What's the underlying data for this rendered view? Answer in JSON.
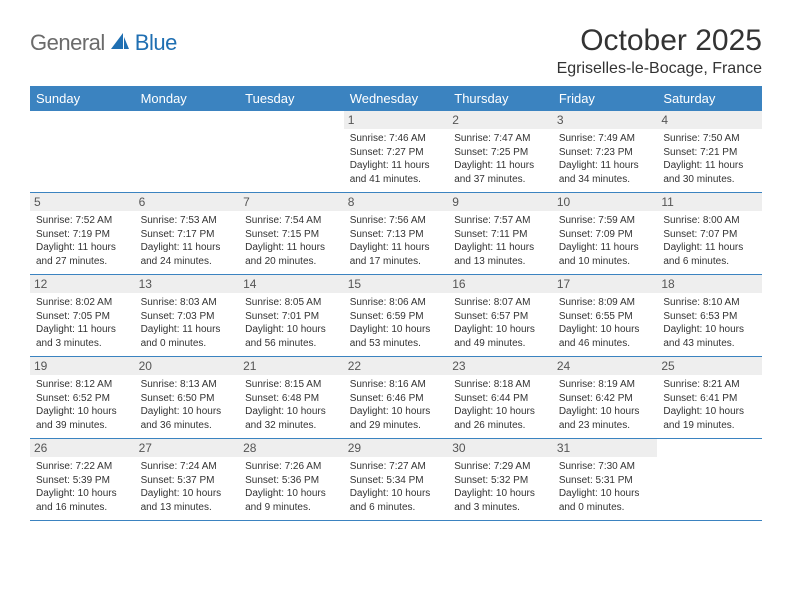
{
  "brand": {
    "part1": "General",
    "part2": "Blue",
    "sail_color": "#1f6fb2",
    "part1_color": "#6b6b6b"
  },
  "header": {
    "month_title": "October 2025",
    "location": "Egriselles-le-Bocage, France"
  },
  "colors": {
    "header_bg": "#3b83c0",
    "header_fg": "#ffffff",
    "rule": "#3b83c0",
    "daynum_bg": "#eeeeee",
    "text": "#333333"
  },
  "weekdays": [
    "Sunday",
    "Monday",
    "Tuesday",
    "Wednesday",
    "Thursday",
    "Friday",
    "Saturday"
  ],
  "weeks": [
    [
      null,
      null,
      null,
      {
        "n": "1",
        "sr": "7:46 AM",
        "ss": "7:27 PM",
        "dl": "11 hours and 41 minutes."
      },
      {
        "n": "2",
        "sr": "7:47 AM",
        "ss": "7:25 PM",
        "dl": "11 hours and 37 minutes."
      },
      {
        "n": "3",
        "sr": "7:49 AM",
        "ss": "7:23 PM",
        "dl": "11 hours and 34 minutes."
      },
      {
        "n": "4",
        "sr": "7:50 AM",
        "ss": "7:21 PM",
        "dl": "11 hours and 30 minutes."
      }
    ],
    [
      {
        "n": "5",
        "sr": "7:52 AM",
        "ss": "7:19 PM",
        "dl": "11 hours and 27 minutes."
      },
      {
        "n": "6",
        "sr": "7:53 AM",
        "ss": "7:17 PM",
        "dl": "11 hours and 24 minutes."
      },
      {
        "n": "7",
        "sr": "7:54 AM",
        "ss": "7:15 PM",
        "dl": "11 hours and 20 minutes."
      },
      {
        "n": "8",
        "sr": "7:56 AM",
        "ss": "7:13 PM",
        "dl": "11 hours and 17 minutes."
      },
      {
        "n": "9",
        "sr": "7:57 AM",
        "ss": "7:11 PM",
        "dl": "11 hours and 13 minutes."
      },
      {
        "n": "10",
        "sr": "7:59 AM",
        "ss": "7:09 PM",
        "dl": "11 hours and 10 minutes."
      },
      {
        "n": "11",
        "sr": "8:00 AM",
        "ss": "7:07 PM",
        "dl": "11 hours and 6 minutes."
      }
    ],
    [
      {
        "n": "12",
        "sr": "8:02 AM",
        "ss": "7:05 PM",
        "dl": "11 hours and 3 minutes."
      },
      {
        "n": "13",
        "sr": "8:03 AM",
        "ss": "7:03 PM",
        "dl": "11 hours and 0 minutes."
      },
      {
        "n": "14",
        "sr": "8:05 AM",
        "ss": "7:01 PM",
        "dl": "10 hours and 56 minutes."
      },
      {
        "n": "15",
        "sr": "8:06 AM",
        "ss": "6:59 PM",
        "dl": "10 hours and 53 minutes."
      },
      {
        "n": "16",
        "sr": "8:07 AM",
        "ss": "6:57 PM",
        "dl": "10 hours and 49 minutes."
      },
      {
        "n": "17",
        "sr": "8:09 AM",
        "ss": "6:55 PM",
        "dl": "10 hours and 46 minutes."
      },
      {
        "n": "18",
        "sr": "8:10 AM",
        "ss": "6:53 PM",
        "dl": "10 hours and 43 minutes."
      }
    ],
    [
      {
        "n": "19",
        "sr": "8:12 AM",
        "ss": "6:52 PM",
        "dl": "10 hours and 39 minutes."
      },
      {
        "n": "20",
        "sr": "8:13 AM",
        "ss": "6:50 PM",
        "dl": "10 hours and 36 minutes."
      },
      {
        "n": "21",
        "sr": "8:15 AM",
        "ss": "6:48 PM",
        "dl": "10 hours and 32 minutes."
      },
      {
        "n": "22",
        "sr": "8:16 AM",
        "ss": "6:46 PM",
        "dl": "10 hours and 29 minutes."
      },
      {
        "n": "23",
        "sr": "8:18 AM",
        "ss": "6:44 PM",
        "dl": "10 hours and 26 minutes."
      },
      {
        "n": "24",
        "sr": "8:19 AM",
        "ss": "6:42 PM",
        "dl": "10 hours and 23 minutes."
      },
      {
        "n": "25",
        "sr": "8:21 AM",
        "ss": "6:41 PM",
        "dl": "10 hours and 19 minutes."
      }
    ],
    [
      {
        "n": "26",
        "sr": "7:22 AM",
        "ss": "5:39 PM",
        "dl": "10 hours and 16 minutes."
      },
      {
        "n": "27",
        "sr": "7:24 AM",
        "ss": "5:37 PM",
        "dl": "10 hours and 13 minutes."
      },
      {
        "n": "28",
        "sr": "7:26 AM",
        "ss": "5:36 PM",
        "dl": "10 hours and 9 minutes."
      },
      {
        "n": "29",
        "sr": "7:27 AM",
        "ss": "5:34 PM",
        "dl": "10 hours and 6 minutes."
      },
      {
        "n": "30",
        "sr": "7:29 AM",
        "ss": "5:32 PM",
        "dl": "10 hours and 3 minutes."
      },
      {
        "n": "31",
        "sr": "7:30 AM",
        "ss": "5:31 PM",
        "dl": "10 hours and 0 minutes."
      },
      null
    ]
  ],
  "labels": {
    "sunrise": "Sunrise:",
    "sunset": "Sunset:",
    "daylight": "Daylight:"
  }
}
